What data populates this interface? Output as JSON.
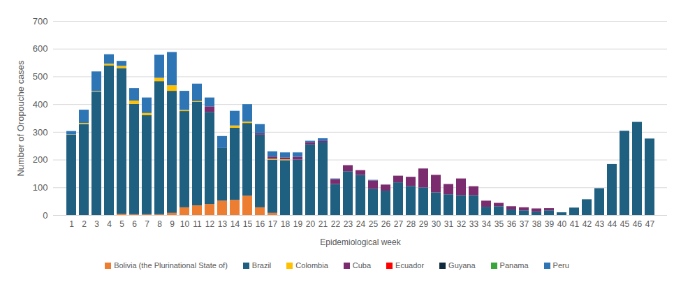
{
  "chart_data": {
    "type": "bar",
    "stacked": true,
    "grid": true,
    "legend": "bottom",
    "x_label": "Epidemiological week",
    "y_label": "Number of Oropouche cases",
    "categories": [
      1,
      2,
      3,
      4,
      5,
      6,
      7,
      8,
      9,
      10,
      11,
      12,
      13,
      14,
      15,
      16,
      17,
      18,
      19,
      20,
      21,
      22,
      23,
      24,
      25,
      26,
      27,
      28,
      29,
      30,
      31,
      32,
      33,
      34,
      35,
      36,
      37,
      38,
      39,
      40,
      41,
      42,
      43,
      44,
      45,
      46,
      47
    ],
    "ylim": [
      0,
      700
    ],
    "yticks": [
      0,
      100,
      200,
      300,
      400,
      500,
      600,
      700
    ],
    "series": [
      {
        "name": "Bolivia (the Plurinational State of)",
        "color": "#ED7D31",
        "values": [
          0,
          0,
          0,
          0,
          5,
          3,
          3,
          3,
          8,
          28,
          35,
          40,
          52,
          55,
          70,
          28,
          8,
          0,
          0,
          0,
          0,
          0,
          0,
          0,
          0,
          0,
          0,
          0,
          0,
          0,
          0,
          0,
          0,
          0,
          0,
          0,
          0,
          0,
          0,
          0,
          0,
          0,
          0,
          0,
          0,
          0,
          0
        ]
      },
      {
        "name": "Brazil",
        "color": "#1F5F80",
        "values": [
          290,
          328,
          445,
          540,
          525,
          398,
          357,
          480,
          440,
          347,
          373,
          332,
          190,
          260,
          262,
          262,
          192,
          198,
          200,
          255,
          262,
          112,
          158,
          145,
          95,
          88,
          118,
          105,
          100,
          82,
          75,
          72,
          72,
          30,
          32,
          20,
          17,
          13,
          17,
          10,
          27,
          57,
          97,
          184,
          304,
          336,
          276
        ]
      },
      {
        "name": "Colombia",
        "color": "#FFC000",
        "values": [
          1,
          4,
          2,
          6,
          8,
          12,
          8,
          12,
          20,
          4,
          3,
          0,
          0,
          8,
          5,
          0,
          3,
          3,
          0,
          0,
          0,
          0,
          0,
          0,
          0,
          0,
          0,
          0,
          0,
          0,
          0,
          0,
          0,
          0,
          0,
          0,
          0,
          0,
          0,
          0,
          0,
          0,
          0,
          0,
          0,
          0,
          0
        ]
      },
      {
        "name": "Cuba",
        "color": "#7B2C6E",
        "values": [
          0,
          0,
          0,
          0,
          0,
          0,
          0,
          0,
          0,
          0,
          0,
          20,
          0,
          0,
          0,
          5,
          8,
          7,
          10,
          8,
          5,
          18,
          22,
          17,
          30,
          22,
          24,
          33,
          68,
          63,
          37,
          60,
          32,
          22,
          12,
          12,
          11,
          11,
          8,
          0,
          0,
          0,
          0,
          0,
          0,
          0,
          0
        ]
      },
      {
        "name": "Ecuador",
        "color": "#FF0000",
        "values": [
          0,
          0,
          0,
          0,
          0,
          0,
          0,
          0,
          0,
          0,
          0,
          0,
          0,
          0,
          0,
          0,
          0,
          0,
          0,
          0,
          0,
          0,
          0,
          0,
          0,
          0,
          0,
          0,
          0,
          0,
          0,
          0,
          0,
          0,
          0,
          0,
          0,
          0,
          0,
          0,
          0,
          0,
          0,
          0,
          0,
          0,
          0
        ]
      },
      {
        "name": "Guyana",
        "color": "#0F2A3D",
        "values": [
          0,
          0,
          0,
          0,
          0,
          0,
          0,
          0,
          0,
          0,
          0,
          0,
          0,
          0,
          0,
          0,
          0,
          0,
          0,
          0,
          0,
          0,
          0,
          0,
          0,
          0,
          0,
          0,
          0,
          0,
          0,
          0,
          0,
          0,
          0,
          0,
          0,
          0,
          0,
          0,
          0,
          0,
          0,
          0,
          0,
          0,
          0
        ]
      },
      {
        "name": "Panama",
        "color": "#3AA53A",
        "values": [
          0,
          0,
          0,
          0,
          0,
          0,
          0,
          0,
          0,
          0,
          0,
          0,
          0,
          0,
          0,
          0,
          0,
          0,
          0,
          0,
          0,
          0,
          0,
          0,
          0,
          0,
          0,
          0,
          0,
          0,
          0,
          0,
          0,
          0,
          0,
          0,
          0,
          0,
          0,
          0,
          0,
          0,
          0,
          0,
          0,
          0,
          0
        ]
      },
      {
        "name": "Peru",
        "color": "#2E75B6",
        "values": [
          12,
          48,
          71,
          34,
          18,
          45,
          56,
          83,
          120,
          69,
          63,
          32,
          43,
          53,
          63,
          33,
          19,
          18,
          16,
          5,
          10,
          2,
          0,
          0,
          2,
          0,
          0,
          0,
          0,
          0,
          0,
          0,
          0,
          0,
          0,
          0,
          0,
          0,
          0,
          0,
          0,
          0,
          0,
          0,
          0,
          0,
          0
        ]
      }
    ]
  }
}
